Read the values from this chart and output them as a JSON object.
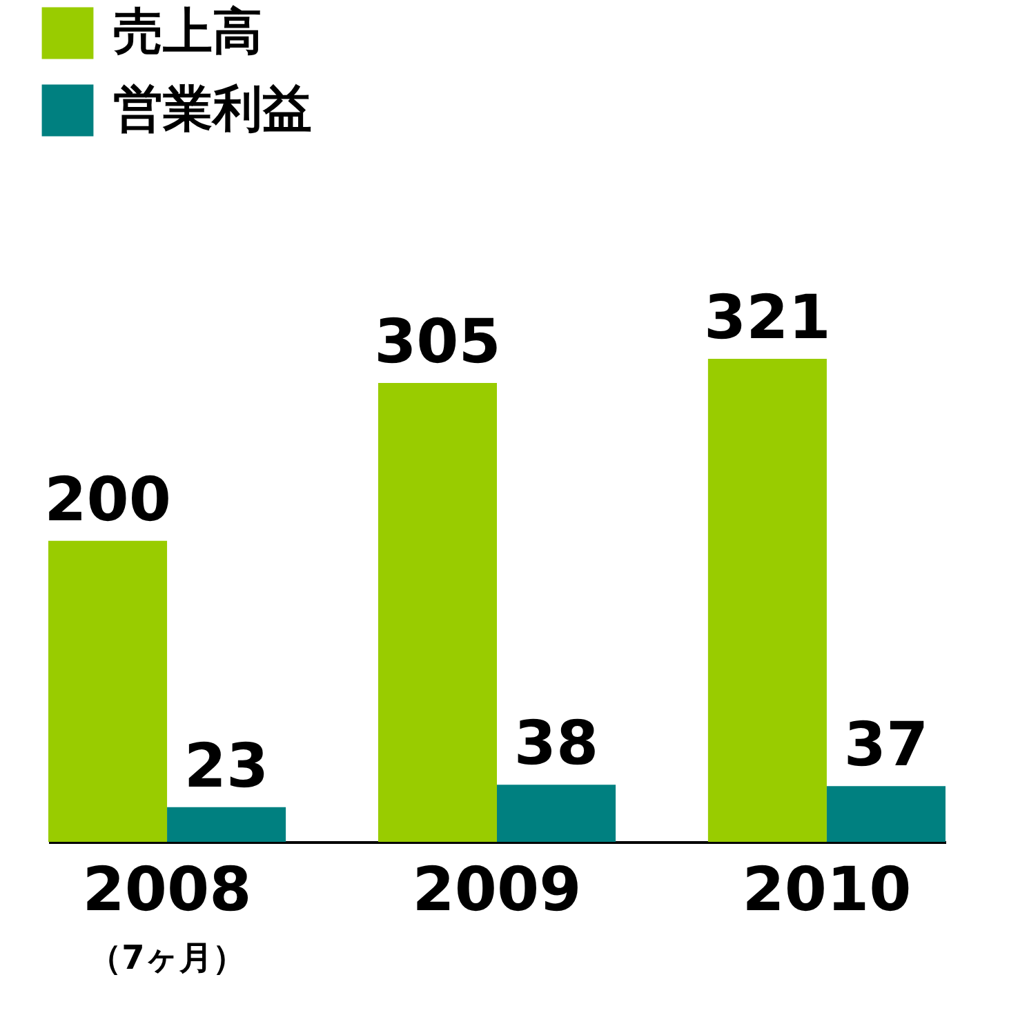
{
  "chart_data": {
    "type": "bar",
    "categories": [
      "2008",
      "2009",
      "2010"
    ],
    "series": [
      {
        "name": "売上高",
        "color": "#99cc00",
        "values": [
          200,
          305,
          321
        ]
      },
      {
        "name": "営業利益",
        "color": "#008080",
        "values": [
          23,
          38,
          37
        ]
      }
    ],
    "data_labels": true,
    "legend": "top left",
    "annotations": [
      "（7ヶ月）"
    ]
  }
}
